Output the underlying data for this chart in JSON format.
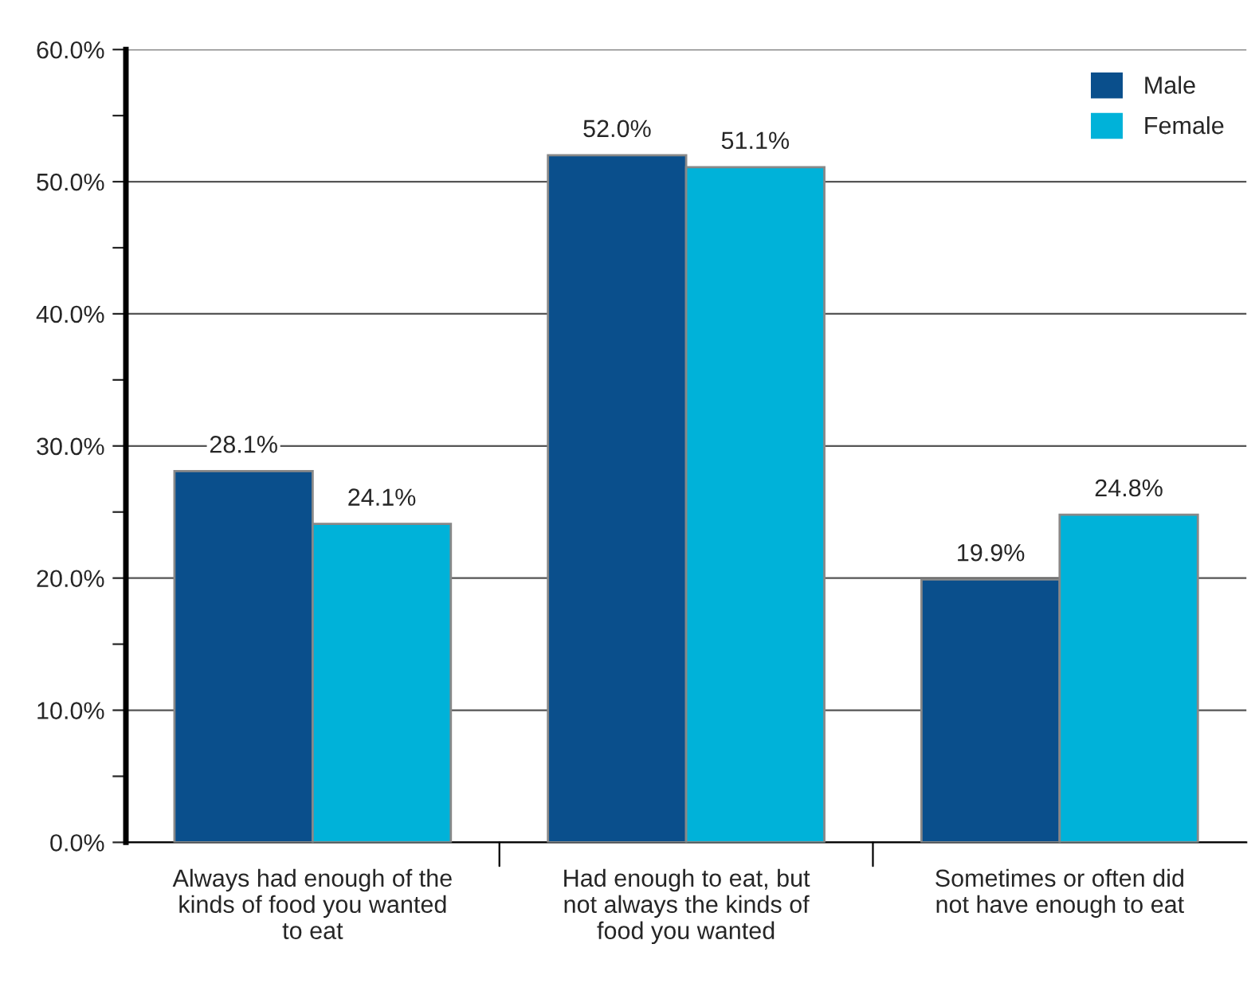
{
  "chart_data": {
    "type": "bar",
    "categories": [
      "Always had enough of the kinds of food you wanted to eat",
      "Had enough to eat, but not always the kinds of food you wanted",
      "Sometimes or often did not have enough to eat"
    ],
    "series": [
      {
        "name": "Male",
        "color": "#0a4f8c",
        "values": [
          28.1,
          52.0,
          19.9
        ]
      },
      {
        "name": "Female",
        "color": "#00b2d9",
        "values": [
          24.1,
          51.1,
          24.8
        ]
      }
    ],
    "value_labels": [
      [
        "28.1%",
        "52.0%",
        "19.9%"
      ],
      [
        "24.1%",
        "51.1%",
        "24.8%"
      ]
    ],
    "ylim": [
      0,
      60
    ],
    "yticks": [
      {
        "value": 0,
        "label": "0.0%"
      },
      {
        "value": 5,
        "label": null
      },
      {
        "value": 10,
        "label": "10.0%"
      },
      {
        "value": 15,
        "label": null
      },
      {
        "value": 20,
        "label": "20.0%"
      },
      {
        "value": 25,
        "label": null
      },
      {
        "value": 30,
        "label": "30.0%"
      },
      {
        "value": 35,
        "label": null
      },
      {
        "value": 40,
        "label": "40.0%"
      },
      {
        "value": 45,
        "label": null
      },
      {
        "value": 50,
        "label": "50.0%"
      },
      {
        "value": 55,
        "label": null
      },
      {
        "value": 60,
        "label": "60.0%"
      }
    ],
    "grid": "y",
    "legend": "top right"
  }
}
